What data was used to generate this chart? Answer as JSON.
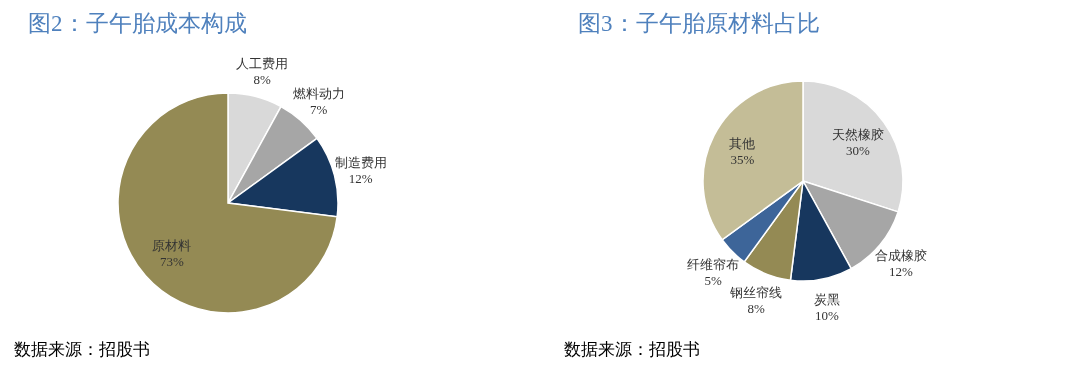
{
  "chart_data": [
    {
      "type": "pie",
      "title": "图2：子午胎成本构成",
      "categories": [
        "人工费用",
        "燃料动力",
        "制造费用",
        "原材料"
      ],
      "values": [
        8,
        7,
        12,
        73
      ],
      "value_labels": [
        "8%",
        "7%",
        "12%",
        "73%"
      ],
      "colors": [
        "#d9d9d9",
        "#a6a6a6",
        "#17375e",
        "#948a54"
      ],
      "legend": false,
      "annotations": [
        "数据来源：招股书"
      ]
    },
    {
      "type": "pie",
      "title": "图3：子午胎原材料占比",
      "categories": [
        "天然橡胶",
        "合成橡胶",
        "炭黑",
        "钢丝帘线",
        "纤维帘布",
        "其他"
      ],
      "values": [
        30,
        12,
        10,
        8,
        5,
        35
      ],
      "value_labels": [
        "30%",
        "12%",
        "10%",
        "8%",
        "5%",
        "35%"
      ],
      "colors": [
        "#d9d9d9",
        "#a6a6a6",
        "#17375e",
        "#948a54",
        "#3d6599",
        "#c4bd97"
      ],
      "legend": false,
      "annotations": [
        "数据来源：招股书"
      ]
    }
  ]
}
